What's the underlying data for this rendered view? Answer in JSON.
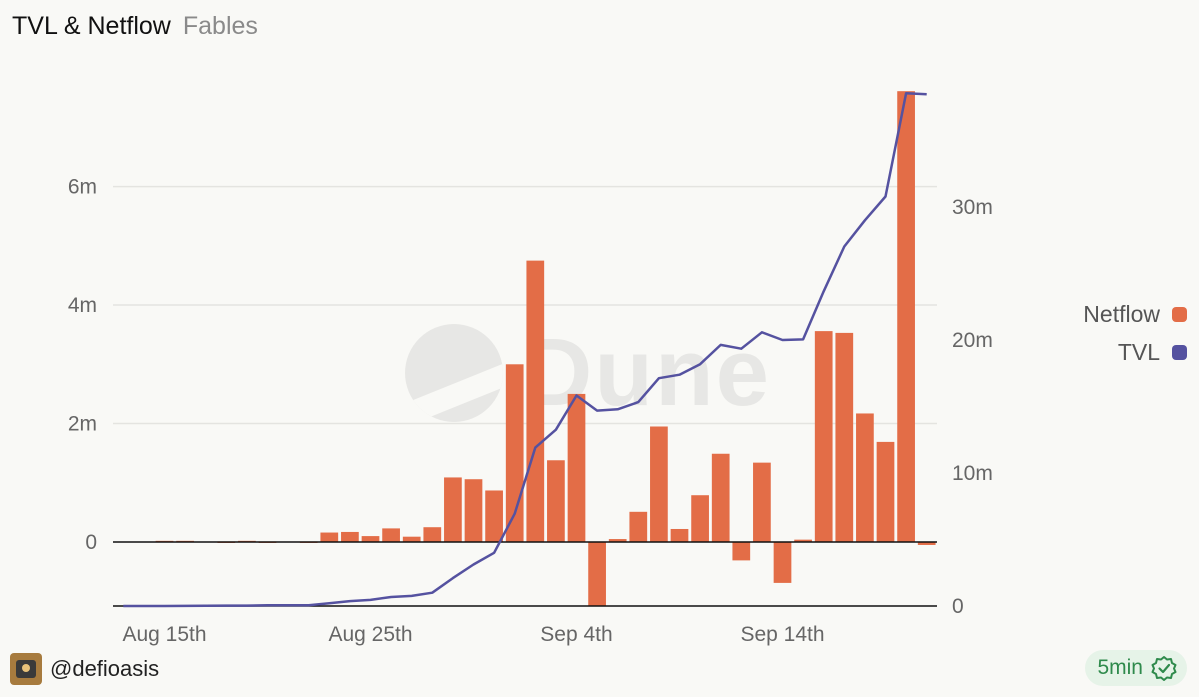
{
  "header": {
    "title": "TVL & Netflow",
    "subtitle": "Fables"
  },
  "watermark": {
    "text": "Dune"
  },
  "legend": [
    {
      "label": "Netflow",
      "color": "#e36d47"
    },
    {
      "label": "TVL",
      "color": "#5552a0"
    }
  ],
  "footer": {
    "username": "@defioasis",
    "refresh_label": "5min",
    "avatar_icon": "avatar-icon",
    "check_icon": "check-badge-icon"
  },
  "colors": {
    "netflow": "#e36d47",
    "tvl": "#5552a0",
    "grid": "#e4e4e0"
  },
  "chart_data": {
    "type": "bar+line",
    "x_start": "Aug 13th",
    "x_end": "Sep 22nd",
    "x_tick_labels": [
      "Aug 15th",
      "Aug 25th",
      "Sep 4th",
      "Sep 14th"
    ],
    "left_axis": {
      "series": "Netflow",
      "ticks": [
        0,
        2000000,
        4000000,
        6000000
      ],
      "tick_labels": [
        "0",
        "2m",
        "4m",
        "6m"
      ],
      "range": [
        -1080000,
        7630000
      ]
    },
    "right_axis": {
      "series": "TVL",
      "ticks": [
        0,
        10000000,
        20000000,
        30000000
      ],
      "tick_labels": [
        "0",
        "10m",
        "20m",
        "30m"
      ],
      "range": [
        0,
        38800000
      ]
    },
    "series": [
      {
        "name": "Netflow",
        "type": "bar",
        "axis": "left",
        "values": [
          0,
          0,
          20000,
          20000,
          0,
          10000,
          20000,
          10000,
          0,
          10000,
          160000,
          170000,
          100000,
          230000,
          90000,
          250000,
          1090000,
          1060000,
          870000,
          3000000,
          4750000,
          1380000,
          2500000,
          -1080000,
          50000,
          510000,
          1950000,
          220000,
          790000,
          1490000,
          -310000,
          1340000,
          -690000,
          40000,
          3560000,
          3530000,
          2170000,
          1690000,
          7610000,
          -50000
        ]
      },
      {
        "name": "TVL",
        "type": "line",
        "axis": "right",
        "values": [
          0,
          0,
          0,
          10000,
          20000,
          30000,
          30000,
          50000,
          60000,
          60000,
          200000,
          370000,
          460000,
          680000,
          760000,
          1000000,
          2100000,
          3120000,
          4000000,
          6940000,
          11910000,
          13260000,
          15830000,
          14690000,
          14790000,
          15330000,
          17130000,
          17390000,
          18180000,
          19630000,
          19350000,
          20580000,
          20000000,
          20050000,
          23660000,
          27030000,
          29000000,
          30790000,
          38550000,
          38480000
        ]
      }
    ]
  }
}
